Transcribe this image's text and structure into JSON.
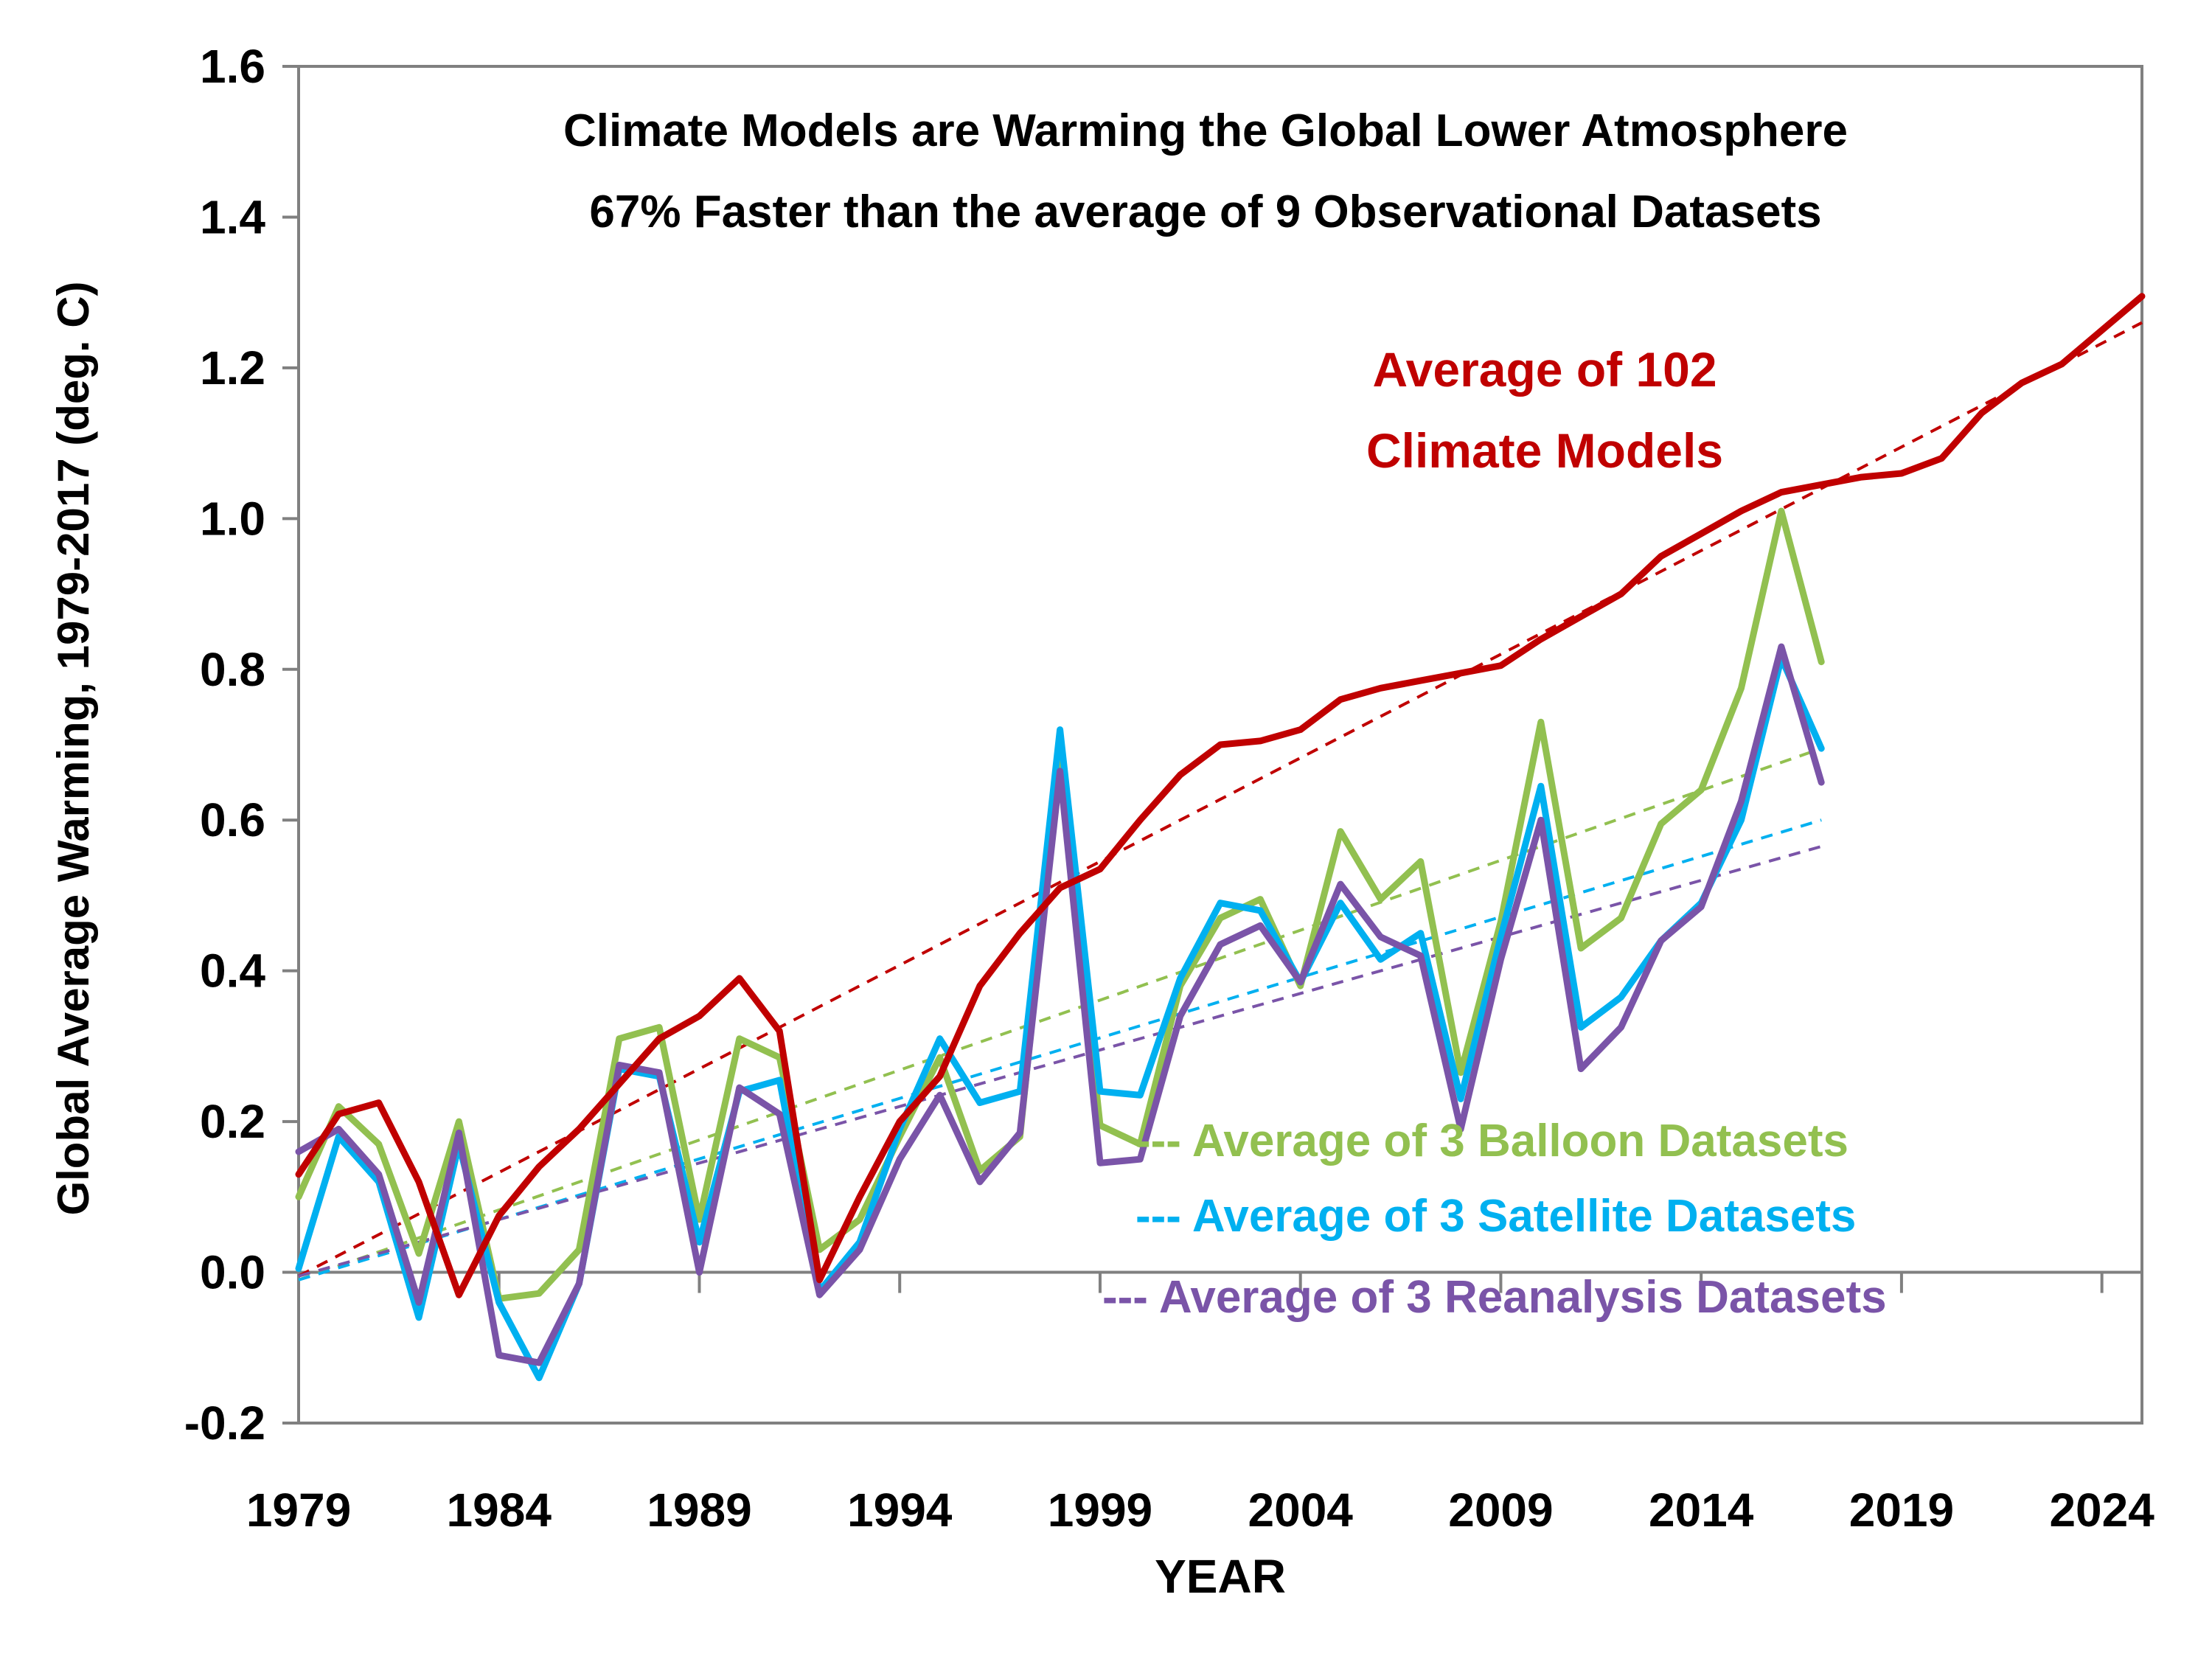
{
  "chart_data": {
    "type": "line",
    "title": "Climate Models are Warming the Global Lower Atmosphere",
    "subtitle": "67% Faster than the average of 9 Observational Datasets",
    "xlabel": "YEAR",
    "ylabel": "Global Average Warming, 1979-2017 (deg. C)",
    "xlim": [
      1979,
      2025
    ],
    "ylim": [
      -0.2,
      1.6
    ],
    "x_ticks": [
      "1979",
      "1984",
      "1989",
      "1994",
      "1999",
      "2004",
      "2009",
      "2014",
      "2019",
      "2024"
    ],
    "y_ticks": [
      "1.6",
      "1.4",
      "1.2",
      "1.0",
      "0.8",
      "0.6",
      "0.4",
      "0.2",
      "0.0",
      "-0.2"
    ],
    "grid": false,
    "colors": {
      "models": "#c00000",
      "models_trend": "#c00000",
      "balloon": "#92c050",
      "satellite": "#00b0f0",
      "reanalysis": "#7a54a8",
      "axis": "#808080"
    },
    "series": [
      {
        "name": "Average of 102 Climate Models",
        "role": "models",
        "x_start": 1979,
        "values": [
          0.13,
          0.21,
          0.225,
          0.12,
          -0.03,
          0.075,
          0.14,
          0.19,
          0.25,
          0.31,
          0.34,
          0.39,
          0.32,
          -0.01,
          0.1,
          0.2,
          0.26,
          0.38,
          0.45,
          0.51,
          0.535,
          0.6,
          0.66,
          0.7,
          0.705,
          0.72,
          0.76,
          0.775,
          0.785,
          0.795,
          0.805,
          0.84,
          0.87,
          0.9,
          0.95,
          0.98,
          1.01,
          1.035,
          1.045,
          1.055,
          1.06,
          1.08,
          1.14,
          1.18,
          1.205,
          1.25,
          1.295
        ]
      },
      {
        "name": "Average of 3 Balloon Datasets",
        "role": "balloon",
        "x_start": 1979,
        "values": [
          0.1,
          0.22,
          0.17,
          0.025,
          0.2,
          -0.035,
          -0.028,
          0.03,
          0.31,
          0.325,
          0.07,
          0.31,
          0.285,
          0.03,
          0.07,
          0.18,
          0.285,
          0.135,
          0.18,
          0.69,
          0.195,
          0.17,
          0.38,
          0.47,
          0.495,
          0.38,
          0.585,
          0.495,
          0.545,
          0.265,
          0.465,
          0.73,
          0.43,
          0.47,
          0.595,
          0.64,
          0.775,
          1.01,
          0.81
        ]
      },
      {
        "name": "Average of 3 Satellite Datasets",
        "role": "satellite",
        "x_start": 1979,
        "values": [
          0.005,
          0.18,
          0.12,
          -0.06,
          0.17,
          -0.04,
          -0.14,
          -0.015,
          0.27,
          0.26,
          0.04,
          0.24,
          0.255,
          -0.025,
          0.04,
          0.19,
          0.31,
          0.225,
          0.24,
          0.72,
          0.24,
          0.235,
          0.39,
          0.49,
          0.48,
          0.385,
          0.49,
          0.415,
          0.45,
          0.23,
          0.445,
          0.645,
          0.325,
          0.365,
          0.44,
          0.49,
          0.6,
          0.815,
          0.695
        ]
      },
      {
        "name": "Average of 3 Reanalysis Datasets",
        "role": "reanalysis",
        "x_start": 1979,
        "values": [
          0.16,
          0.19,
          0.13,
          -0.04,
          0.185,
          -0.11,
          -0.12,
          -0.015,
          0.275,
          0.265,
          0.0,
          0.245,
          0.21,
          -0.03,
          0.03,
          0.15,
          0.235,
          0.12,
          0.185,
          0.665,
          0.145,
          0.15,
          0.34,
          0.435,
          0.46,
          0.385,
          0.515,
          0.445,
          0.42,
          0.19,
          0.415,
          0.6,
          0.27,
          0.325,
          0.44,
          0.485,
          0.625,
          0.83,
          0.65
        ]
      }
    ],
    "trends": [
      {
        "role": "models",
        "x": [
          1979,
          2025
        ],
        "y": [
          -0.005,
          1.26
        ]
      },
      {
        "role": "balloon",
        "x": [
          1979,
          2017
        ],
        "y": [
          -0.01,
          0.695
        ]
      },
      {
        "role": "satellite",
        "x": [
          1979,
          2017
        ],
        "y": [
          -0.01,
          0.6
        ]
      },
      {
        "role": "reanalysis",
        "x": [
          1979,
          2017
        ],
        "y": [
          -0.005,
          0.565
        ]
      }
    ],
    "annotations": {
      "models_line1": "Average of 102",
      "models_line2": "Climate Models",
      "balloon": "--- Average of 3 Balloon Datasets",
      "satellite": "--- Average of 3 Satellite Datasets",
      "reanalysis": "--- Average of 3 Reanalysis Datasets"
    }
  }
}
